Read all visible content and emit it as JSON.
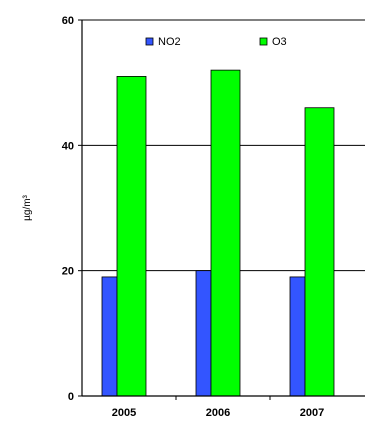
{
  "chart_data": {
    "type": "bar",
    "title": "",
    "xlabel": "",
    "ylabel": "µg/m³",
    "categories": [
      "2005",
      "2006",
      "2007"
    ],
    "ylim": [
      0,
      60
    ],
    "yticks": [
      "0",
      "20",
      "40",
      "60"
    ],
    "grid": true,
    "legend_position": "top",
    "series": [
      {
        "name": "NO2",
        "values": [
          19,
          20,
          19
        ],
        "color": "#3355ff"
      },
      {
        "name": "O3",
        "values": [
          51,
          52,
          46
        ],
        "color": "#00ff00"
      }
    ]
  }
}
